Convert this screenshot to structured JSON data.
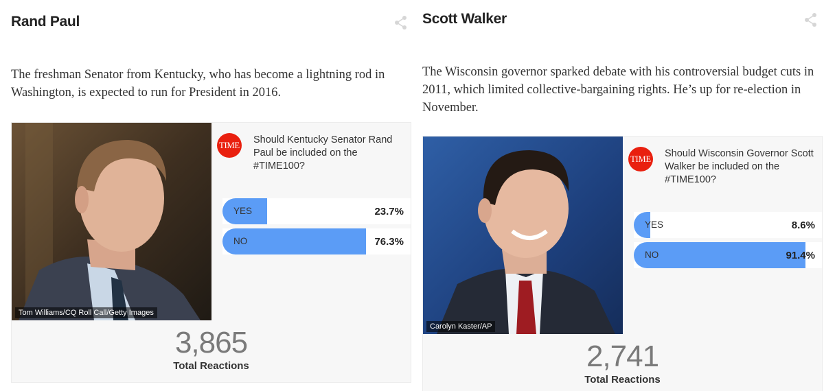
{
  "left": {
    "name": "Rand Paul",
    "description": "The freshman Senator from Kentucky, who has become a lightning rod in Washington, is expected to run for President in 2016.",
    "photo_credit": "Tom Williams/CQ Roll Call/Getty Images",
    "logo_text": "TIME",
    "question": "Should Kentucky Senator Rand Paul be included on the #TIME100?",
    "yes_label": "YES",
    "yes_pct": "23.7%",
    "yes_value": 23.7,
    "no_label": "NO",
    "no_pct": "76.3%",
    "no_value": 76.3,
    "total": "3,865",
    "total_label": "Total Reactions"
  },
  "right": {
    "name": "Scott Walker",
    "description": "The Wisconsin governor sparked debate with his controversial budget cuts in 2011, which limited collective-bargaining rights. He’s up for re-election in November.",
    "photo_credit": "Carolyn Kaster/AP",
    "logo_text": "TIME",
    "question": "Should Wisconsin Governor Scott Walker be included on the #TIME100?",
    "yes_label": "YES",
    "yes_pct": "8.6%",
    "yes_value": 8.6,
    "no_label": "NO",
    "no_pct": "91.4%",
    "no_value": 91.4,
    "total": "2,741",
    "total_label": "Total Reactions"
  },
  "colors": {
    "accent_bar": "#5b9cf6",
    "time_red": "#e9200f"
  },
  "icons": {
    "share": "share-icon"
  }
}
